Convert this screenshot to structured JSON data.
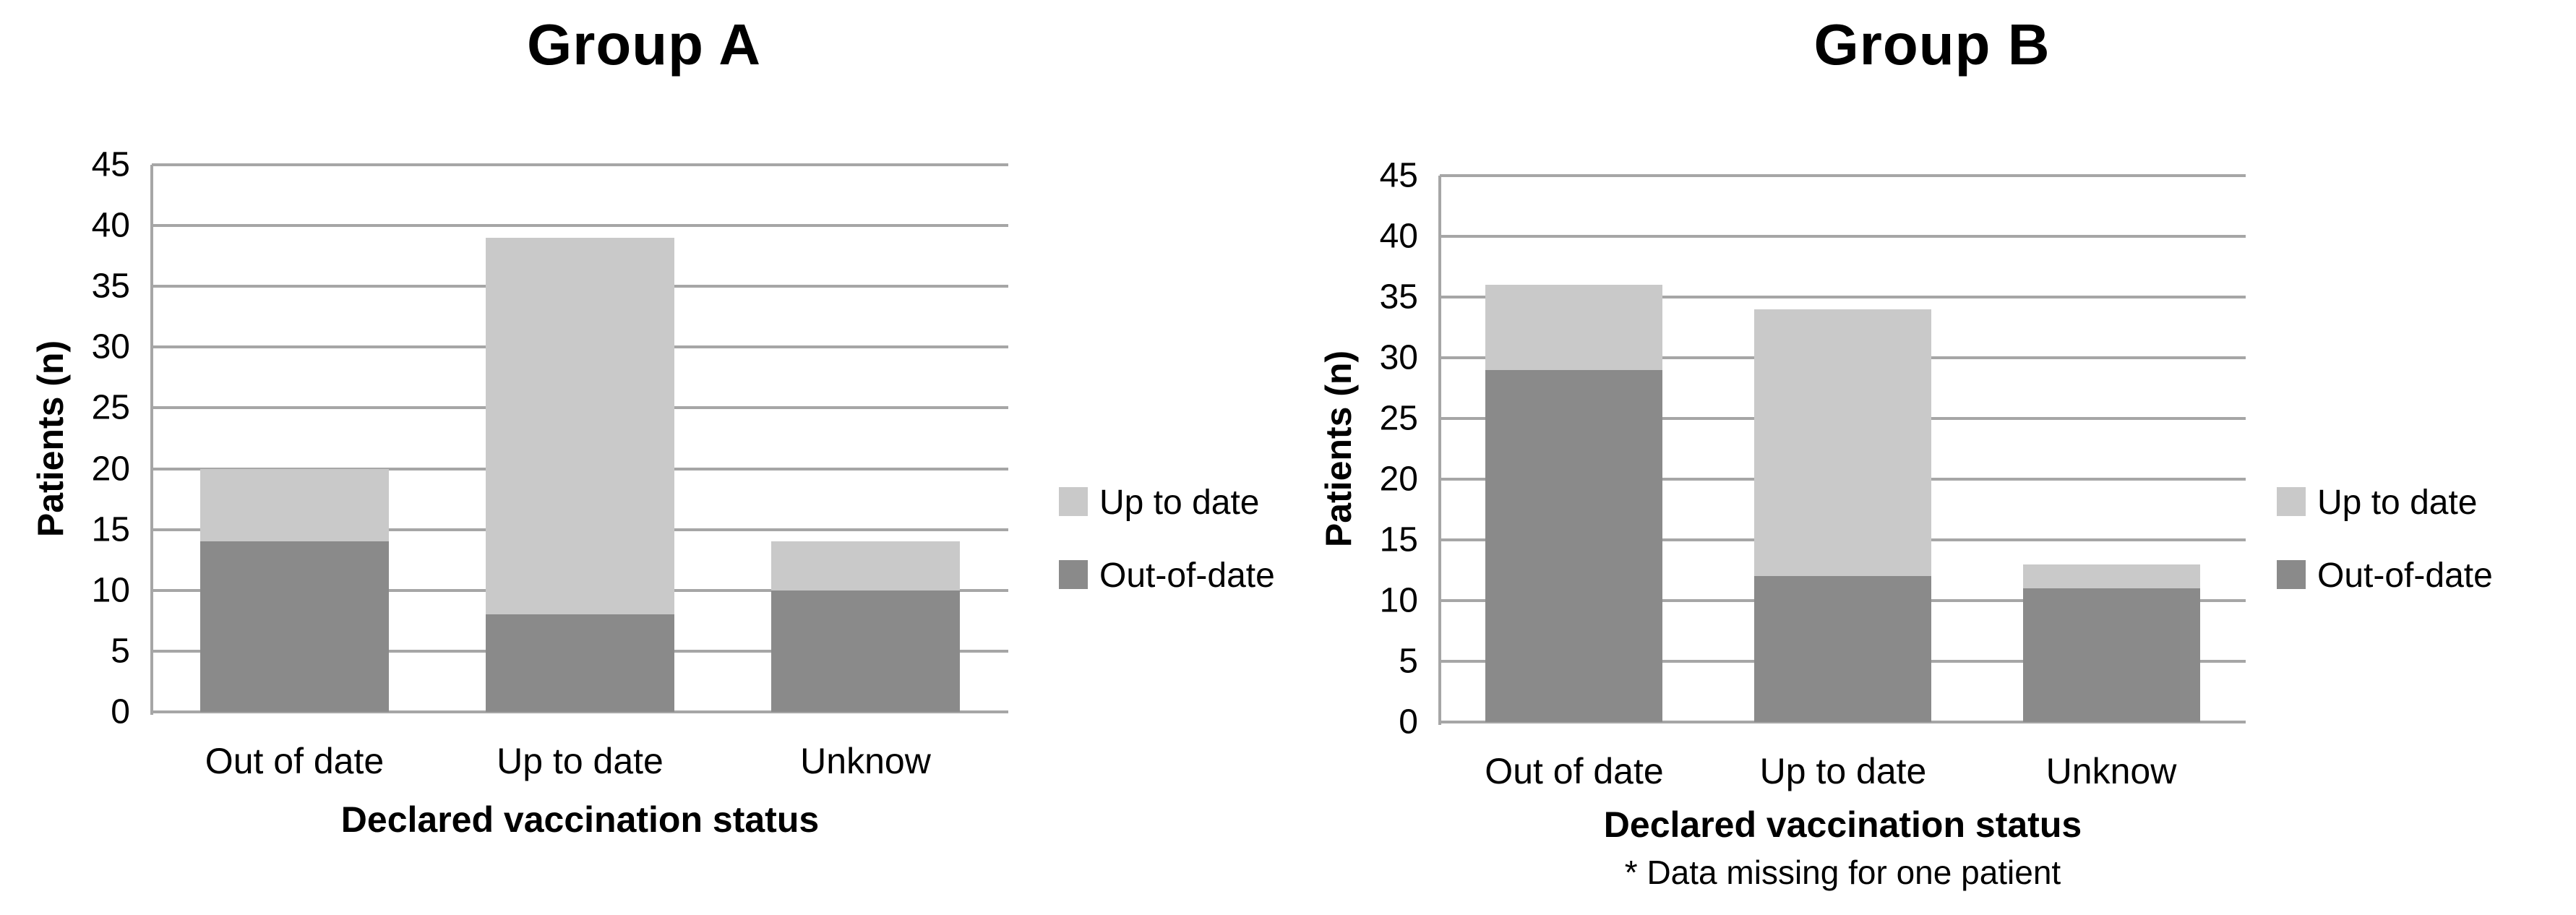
{
  "colors": {
    "background": "#ffffff",
    "grid": "#a6a6a6",
    "axis": "#a6a6a6",
    "text": "#000000",
    "bar_dark": "#8a8a8a",
    "bar_light": "#c9c9c9"
  },
  "chart_data": [
    {
      "type": "bar",
      "stacked": true,
      "title": "Group A",
      "ylabel": "Patients (n)",
      "xlabel": "Declared vaccination status",
      "footnote": "",
      "categories": [
        "Out of date",
        "Up to date",
        "Unknow"
      ],
      "series": [
        {
          "name": "Out-of-date",
          "color": "#8a8a8a",
          "values": [
            14,
            8,
            10
          ]
        },
        {
          "name": "Up to date",
          "color": "#c9c9c9",
          "values": [
            6,
            31,
            4
          ]
        }
      ],
      "stack_totals": [
        20,
        39,
        14
      ],
      "ylim": [
        0,
        45
      ],
      "yticks": [
        0,
        5,
        10,
        15,
        20,
        25,
        30,
        35,
        40,
        45
      ],
      "grid": true,
      "legend": {
        "position": "right",
        "entries": [
          {
            "label": "Up to date",
            "color": "#c9c9c9"
          },
          {
            "label": "Out-of-date",
            "color": "#8a8a8a"
          }
        ]
      }
    },
    {
      "type": "bar",
      "stacked": true,
      "title": "Group B",
      "ylabel": "Patients (n)",
      "xlabel": "Declared vaccination status",
      "footnote": "* Data missing for one patient",
      "categories": [
        "Out of date",
        "Up to date",
        "Unknow"
      ],
      "series": [
        {
          "name": "Out-of-date",
          "color": "#8a8a8a",
          "values": [
            29,
            12,
            11
          ]
        },
        {
          "name": "Up to date",
          "color": "#c9c9c9",
          "values": [
            7,
            22,
            2
          ]
        }
      ],
      "stack_totals": [
        36,
        34,
        13
      ],
      "ylim": [
        0,
        45
      ],
      "yticks": [
        0,
        5,
        10,
        15,
        20,
        25,
        30,
        35,
        40,
        45
      ],
      "grid": true,
      "legend": {
        "position": "right",
        "entries": [
          {
            "label": "Up to date",
            "color": "#c9c9c9"
          },
          {
            "label": "Out-of-date",
            "color": "#8a8a8a"
          }
        ]
      }
    }
  ]
}
